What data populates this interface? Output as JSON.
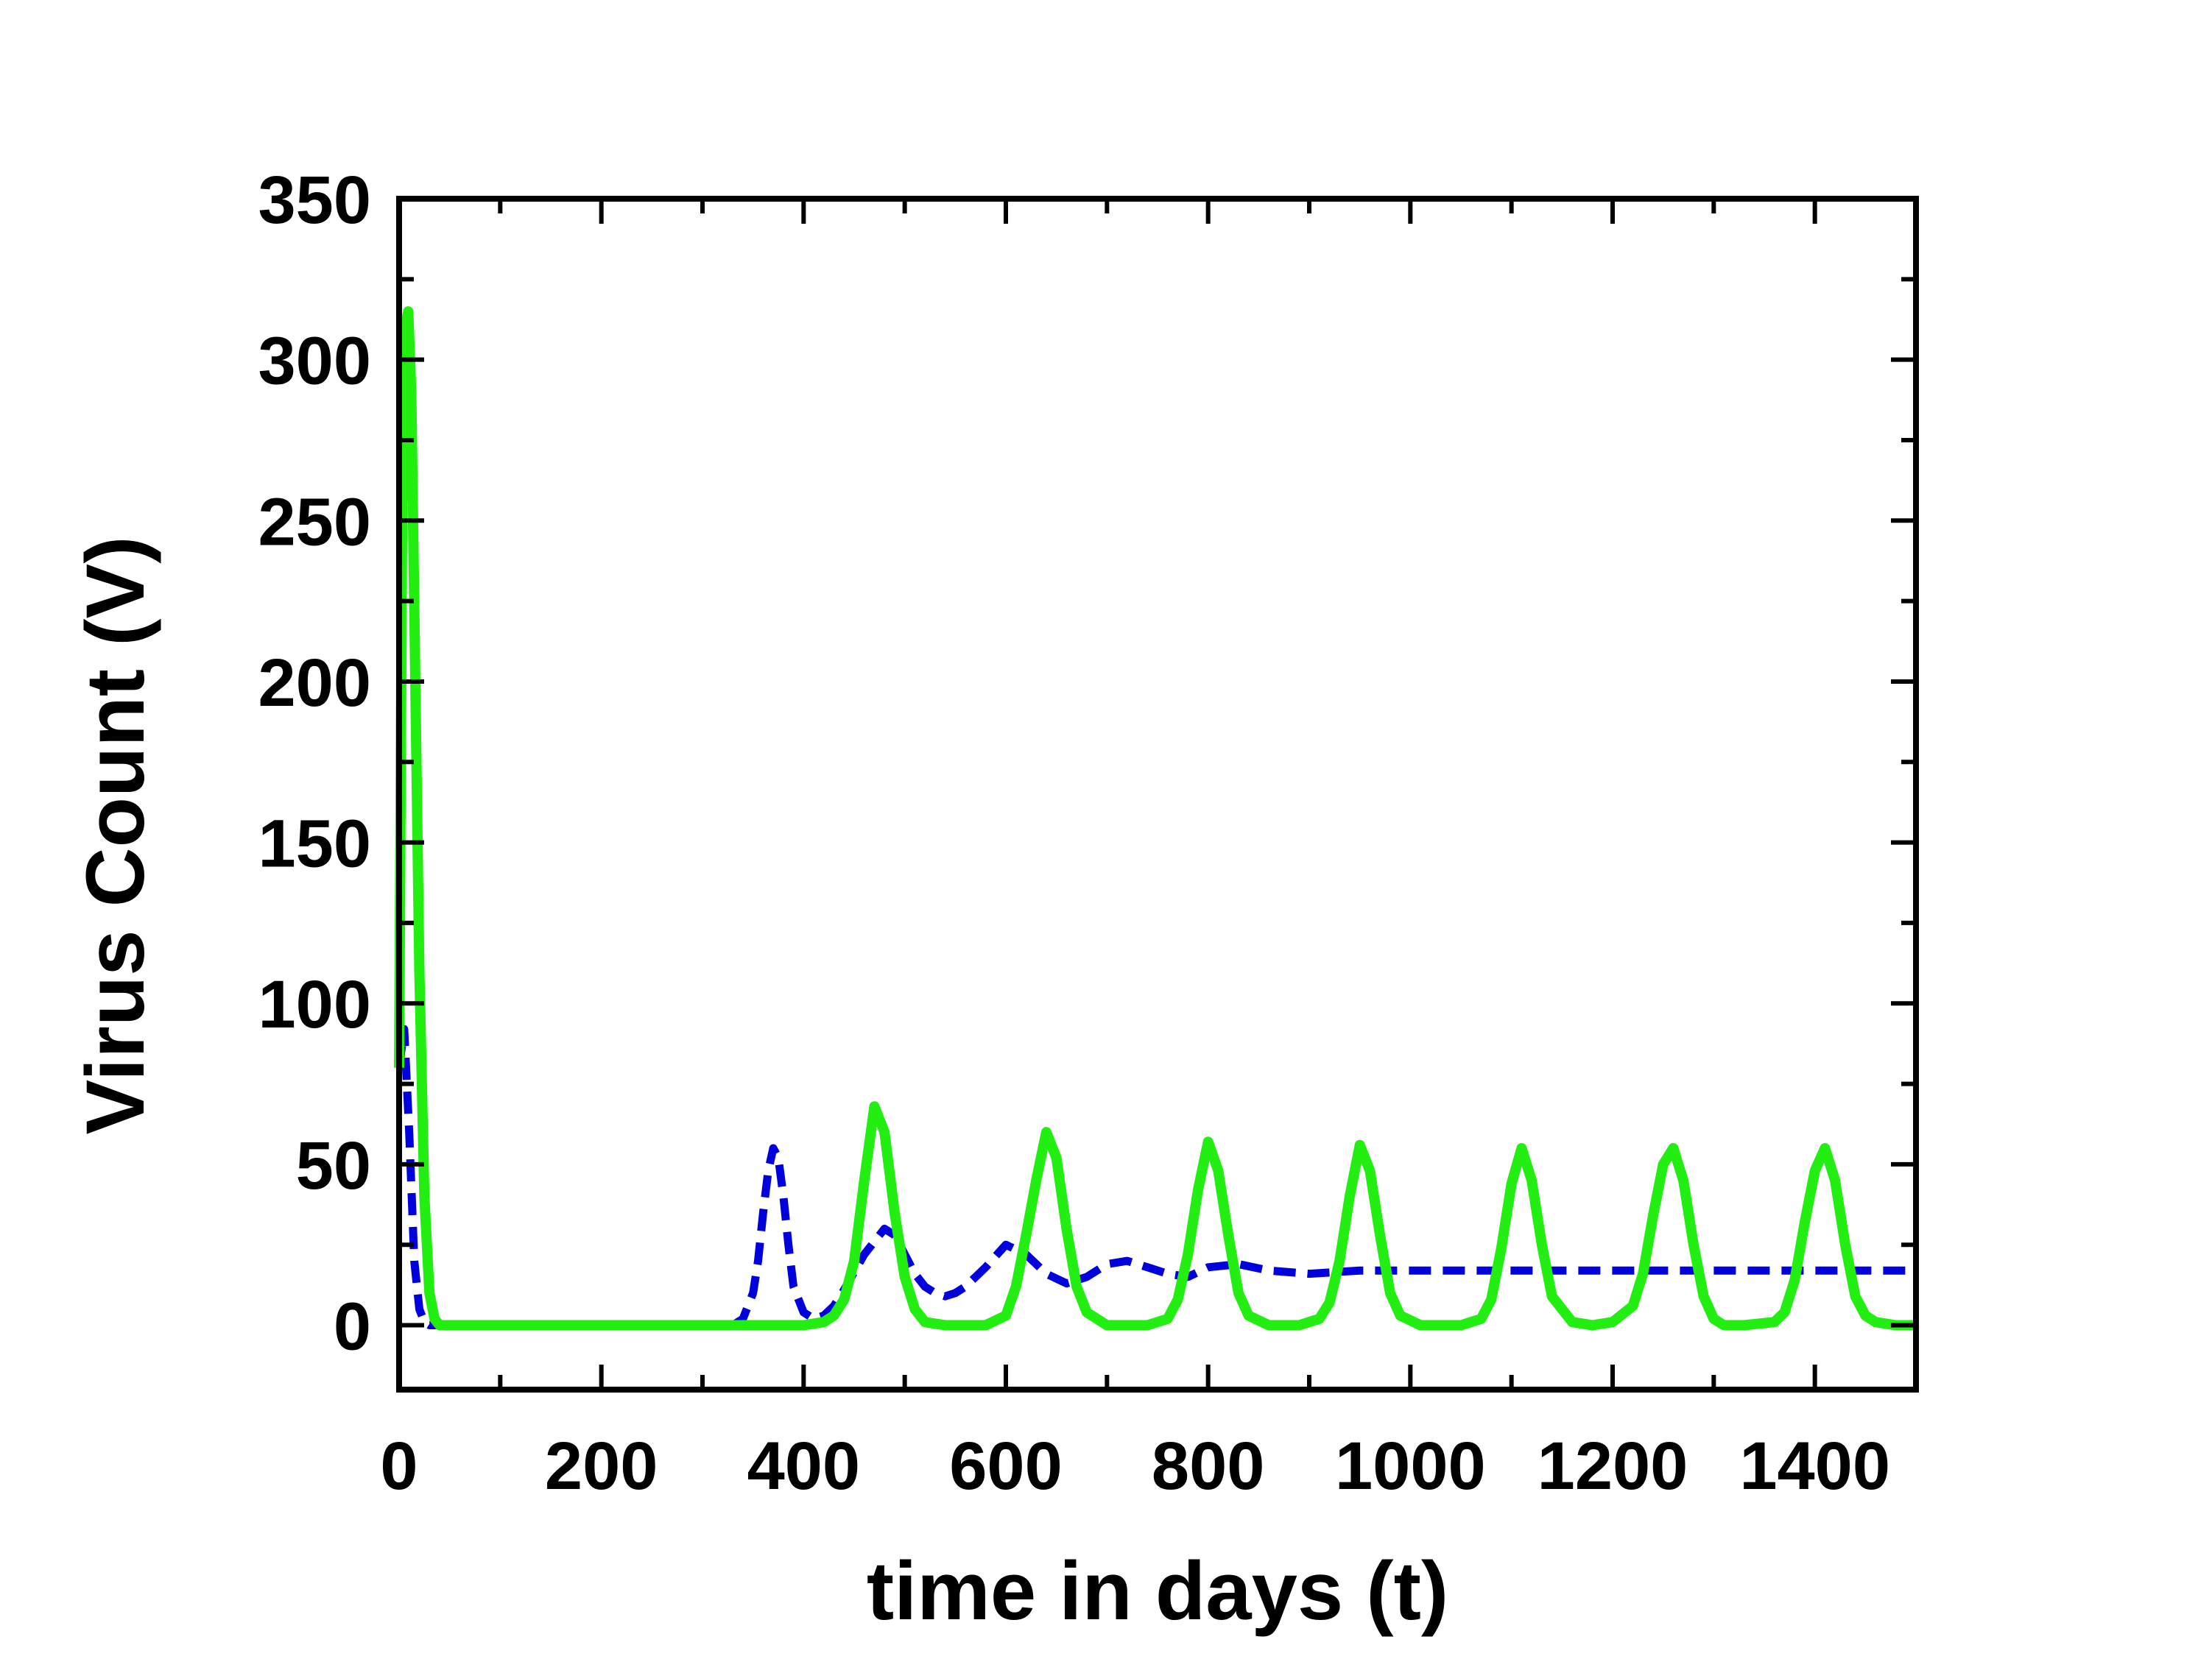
{
  "chart_data": {
    "type": "line",
    "title": "",
    "xlabel": "time in days (t)",
    "ylabel": "Virus Count (V)",
    "xlim": [
      0,
      1500
    ],
    "ylim": [
      -20,
      350
    ],
    "xticks": [
      0,
      200,
      400,
      600,
      800,
      1000,
      1200,
      1400
    ],
    "yticks": [
      0,
      50,
      100,
      150,
      200,
      250,
      300,
      350
    ],
    "grid": false,
    "legend": "none",
    "series": [
      {
        "style": "dashed",
        "color": "#0000dd",
        "x": [
          0,
          5,
          10,
          15,
          20,
          25,
          30,
          40,
          60,
          100,
          200,
          300,
          330,
          340,
          350,
          355,
          360,
          365,
          370,
          375,
          380,
          385,
          390,
          400,
          410,
          420,
          430,
          440,
          460,
          480,
          490,
          500,
          510,
          520,
          530,
          540,
          550,
          560,
          580,
          600,
          620,
          640,
          660,
          680,
          700,
          720,
          740,
          760,
          780,
          800,
          830,
          860,
          900,
          950,
          1000,
          1100,
          1200,
          1300,
          1400,
          1500
        ],
        "y": [
          80,
          92,
          60,
          20,
          5,
          1,
          0,
          0,
          0,
          0,
          0,
          0,
          0,
          2,
          10,
          20,
          35,
          48,
          55,
          52,
          40,
          25,
          12,
          4,
          2,
          3,
          6,
          11,
          22,
          30,
          28,
          22,
          16,
          12,
          10,
          9,
          10,
          12,
          18,
          25,
          22,
          16,
          13,
          15,
          19,
          20,
          18,
          16,
          15,
          18,
          19,
          17,
          16,
          17,
          17,
          17,
          17,
          17,
          17,
          17
        ]
      },
      {
        "style": "solid",
        "color": "#22ee11",
        "x": [
          0,
          3,
          6,
          9,
          12,
          16,
          20,
          25,
          30,
          35,
          40,
          60,
          100,
          200,
          300,
          400,
          420,
          430,
          440,
          450,
          460,
          470,
          480,
          490,
          500,
          510,
          520,
          540,
          580,
          600,
          610,
          620,
          630,
          640,
          650,
          660,
          670,
          680,
          700,
          740,
          760,
          770,
          780,
          790,
          800,
          810,
          820,
          830,
          840,
          860,
          890,
          910,
          920,
          930,
          940,
          950,
          960,
          970,
          980,
          990,
          1010,
          1050,
          1070,
          1080,
          1090,
          1100,
          1110,
          1120,
          1130,
          1140,
          1160,
          1180,
          1200,
          1220,
          1230,
          1240,
          1250,
          1260,
          1270,
          1280,
          1290,
          1300,
          1310,
          1330,
          1360,
          1370,
          1380,
          1390,
          1400,
          1410,
          1420,
          1430,
          1440,
          1450,
          1460,
          1480,
          1500
        ],
        "y": [
          80,
          250,
          310,
          315,
          290,
          200,
          110,
          40,
          10,
          2,
          0,
          0,
          0,
          0,
          0,
          0,
          1,
          3,
          8,
          20,
          45,
          68,
          60,
          35,
          15,
          5,
          1,
          0,
          0,
          3,
          12,
          28,
          45,
          60,
          52,
          30,
          12,
          4,
          0,
          0,
          2,
          8,
          22,
          42,
          57,
          48,
          28,
          10,
          3,
          0,
          0,
          2,
          7,
          20,
          40,
          56,
          48,
          28,
          10,
          3,
          0,
          0,
          2,
          8,
          24,
          44,
          55,
          45,
          25,
          9,
          1,
          0,
          1,
          6,
          16,
          34,
          50,
          55,
          45,
          25,
          9,
          2,
          0,
          0,
          1,
          4,
          14,
          32,
          48,
          55,
          45,
          25,
          9,
          3,
          1,
          0,
          0
        ]
      }
    ]
  }
}
